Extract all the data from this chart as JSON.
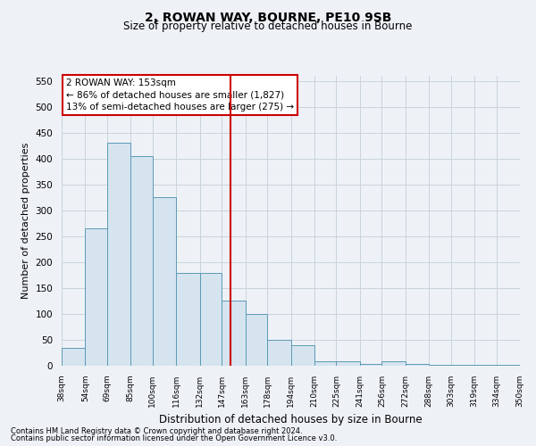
{
  "title1": "2, ROWAN WAY, BOURNE, PE10 9SB",
  "title2": "Size of property relative to detached houses in Bourne",
  "xlabel": "Distribution of detached houses by size in Bourne",
  "ylabel": "Number of detached properties",
  "property_size": 153,
  "property_label": "2 ROWAN WAY: 153sqm",
  "annotation_line1": "← 86% of detached houses are smaller (1,827)",
  "annotation_line2": "13% of semi-detached houses are larger (275) →",
  "footnote1": "Contains HM Land Registry data © Crown copyright and database right 2024.",
  "footnote2": "Contains public sector information licensed under the Open Government Licence v3.0.",
  "bar_color": "#d6e4f0",
  "bar_edge_color": "#5b9ab5",
  "vline_color": "#cc0000",
  "annotation_box_edge_color": "#cc0000",
  "annotation_box_face_color": "#ffffff",
  "grid_color": "#c8d4dc",
  "bin_edges": [
    38,
    54,
    69,
    85,
    100,
    116,
    132,
    147,
    163,
    178,
    194,
    210,
    225,
    241,
    256,
    272,
    288,
    303,
    319,
    334,
    350
  ],
  "bar_heights": [
    35,
    265,
    430,
    405,
    325,
    180,
    180,
    125,
    100,
    50,
    40,
    8,
    8,
    4,
    8,
    4,
    2,
    2,
    2,
    2
  ],
  "ylim": [
    0,
    560
  ],
  "yticks": [
    0,
    50,
    100,
    150,
    200,
    250,
    300,
    350,
    400,
    450,
    500,
    550
  ],
  "background_color": "#eef2f7"
}
